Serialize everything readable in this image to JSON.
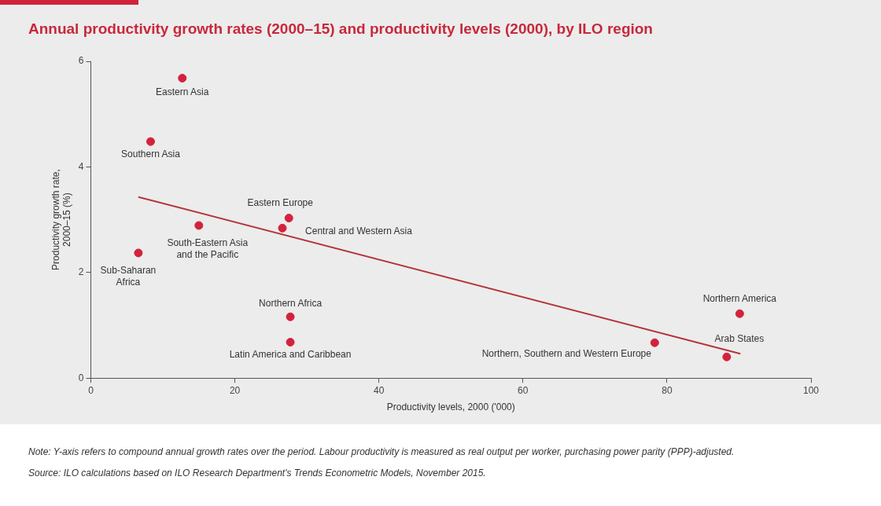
{
  "chart_data": {
    "type": "scatter",
    "title": "Annual productivity growth rates (2000–15) and productivity levels (2000), by ILO region",
    "xlabel": "Productivity levels, 2000 ('000)",
    "ylabel": "Productivity growth rate,\n2000–15 (%)",
    "series": [
      {
        "color": "#d2233c",
        "marker": "circle",
        "x": [
          12.7,
          8.3,
          27.5,
          26.6,
          15.0,
          6.6,
          27.7,
          27.7,
          90.1,
          88.3,
          78.3
        ],
        "values": [
          5.68,
          4.48,
          3.03,
          2.84,
          2.89,
          2.37,
          1.16,
          0.68,
          1.22,
          0.4,
          0.67
        ]
      },
      {
        "type": "line",
        "marker": "none",
        "color": "#b5333a",
        "x": [
          6.6,
          90.2
        ],
        "values": [
          3.43,
          0.46
        ]
      }
    ],
    "xlim": [
      0,
      100
    ],
    "xticks": [
      0,
      20,
      40,
      60,
      80,
      100
    ],
    "ylim": [
      0,
      6
    ],
    "yticks": [
      0,
      2,
      4,
      6
    ],
    "grid": false,
    "legend": false,
    "annotations": [
      {
        "text": "Eastern Asia",
        "x": 12.7,
        "y": 5.68
      },
      {
        "text": "Southern Asia",
        "x": 8.3,
        "y": 4.48
      },
      {
        "text": "Eastern Europe",
        "x": 27.5,
        "y": 3.03
      },
      {
        "text": "Central and Western Asia",
        "x": 26.6,
        "y": 2.84
      },
      {
        "text": "South-Eastern Asia\nand the Pacific",
        "x": 15.0,
        "y": 2.89
      },
      {
        "text": "Sub-Saharan\nAfrica",
        "x": 6.6,
        "y": 2.37
      },
      {
        "text": "Northern Africa",
        "x": 27.7,
        "y": 1.16
      },
      {
        "text": "Latin America and Caribbean",
        "x": 27.7,
        "y": 0.68
      },
      {
        "text": "Northern America",
        "x": 90.1,
        "y": 1.22
      },
      {
        "text": "Arab States",
        "x": 88.3,
        "y": 0.4
      },
      {
        "text": "Northern, Southern and Western Europe",
        "x": 78.3,
        "y": 0.67
      },
      "Note: Y-axis refers to compound annual growth rates over the period. Labour productivity is measured as real output per worker, purchasing power parity (PPP)-adjusted.",
      "Source: ILO calculations based on ILO Research Department's Trends Econometric Models, November 2015."
    ]
  }
}
